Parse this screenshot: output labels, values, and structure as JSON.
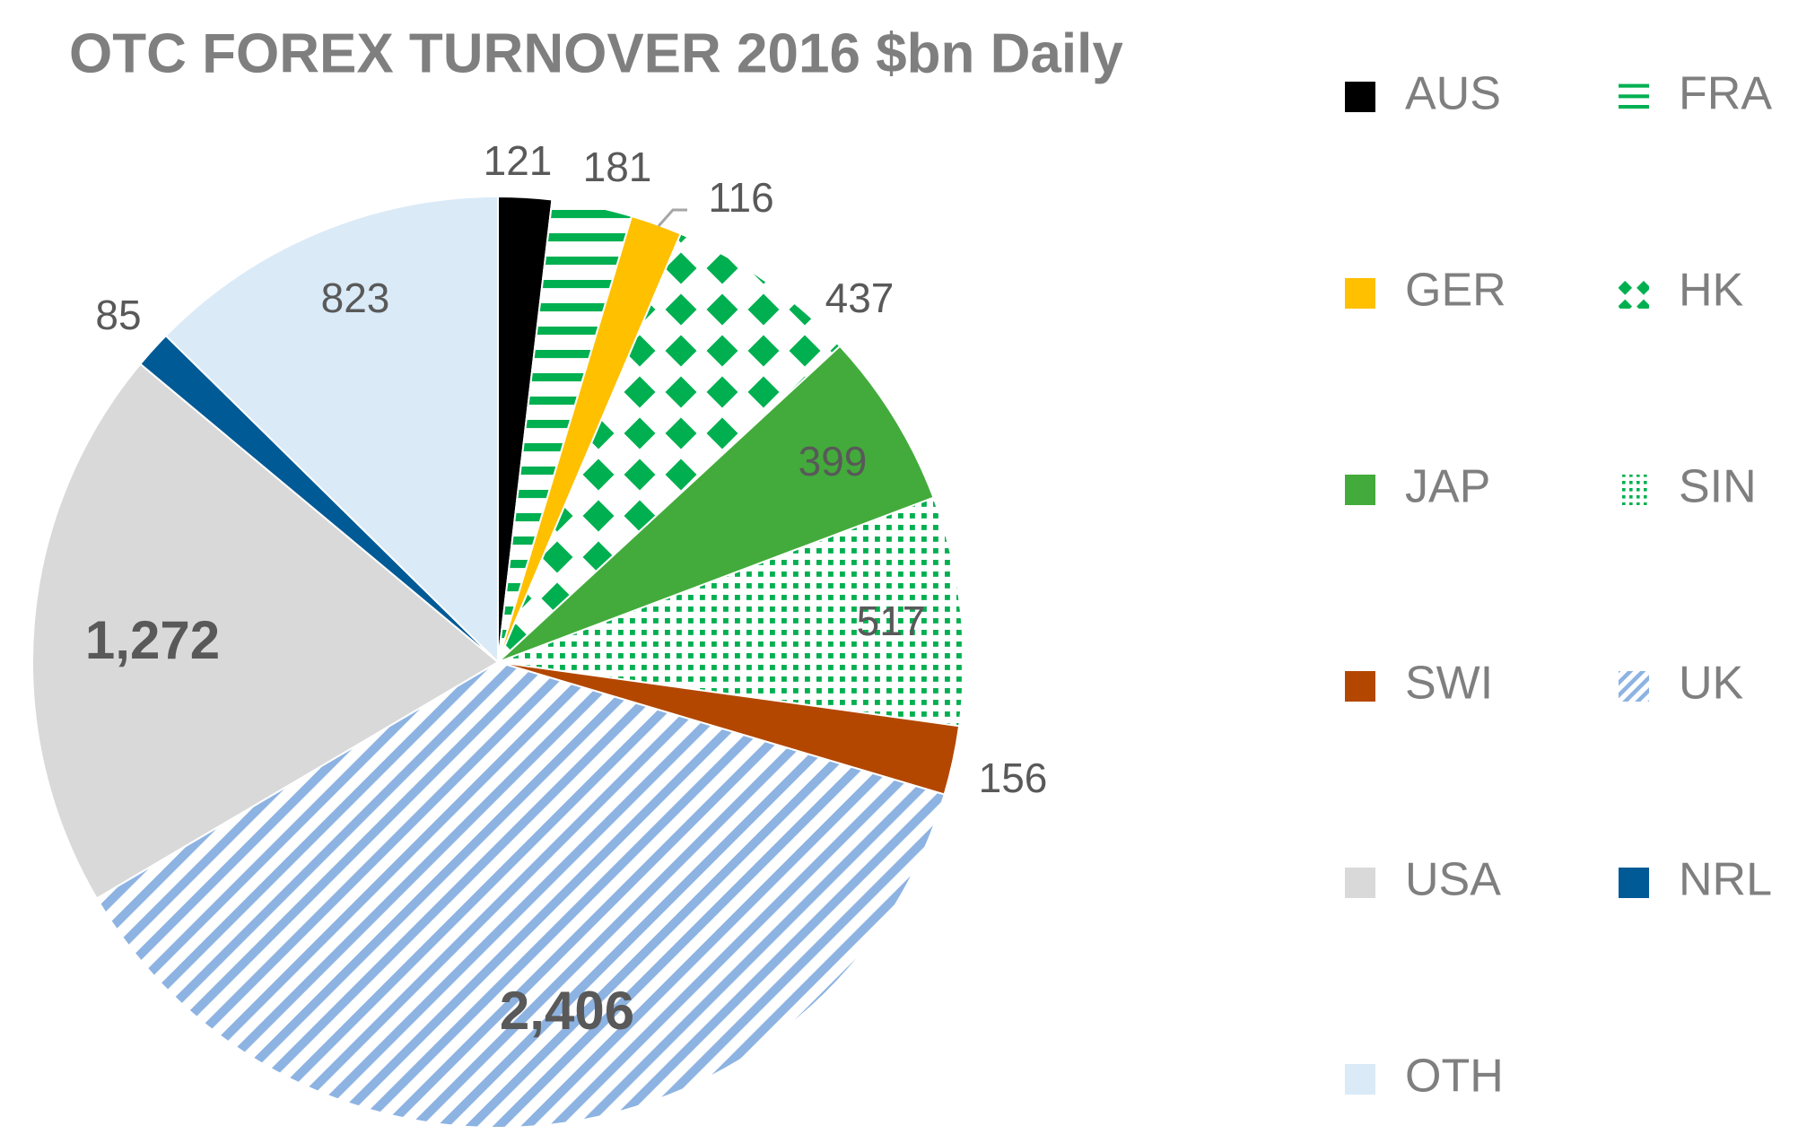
{
  "chart_data": {
    "type": "pie",
    "title": "OTC FOREX TURNOVER 2016 $bn Daily",
    "categories": [
      "AUS",
      "FRA",
      "GER",
      "HK",
      "JAP",
      "SIN",
      "SWI",
      "UK",
      "USA",
      "NRL",
      "OTH"
    ],
    "values": [
      121,
      181,
      116,
      437,
      399,
      517,
      156,
      2406,
      1272,
      85,
      823
    ],
    "value_labels": [
      "121",
      "181",
      "116",
      "437",
      "399",
      "517",
      "156",
      "2,406",
      "1,272",
      "85",
      "823"
    ],
    "colors": [
      "#000000",
      "#00b050",
      "#ffc000",
      "#00b050",
      "#43ab3b",
      "#00b050",
      "#b34700",
      "#8db3e2",
      "#d9d9d9",
      "#005a96",
      "#daeaf7"
    ],
    "patterns": [
      "solid",
      "hstripe",
      "solid",
      "diamond",
      "solid",
      "dots",
      "solid",
      "diagonal",
      "solid",
      "solid",
      "solid"
    ]
  }
}
